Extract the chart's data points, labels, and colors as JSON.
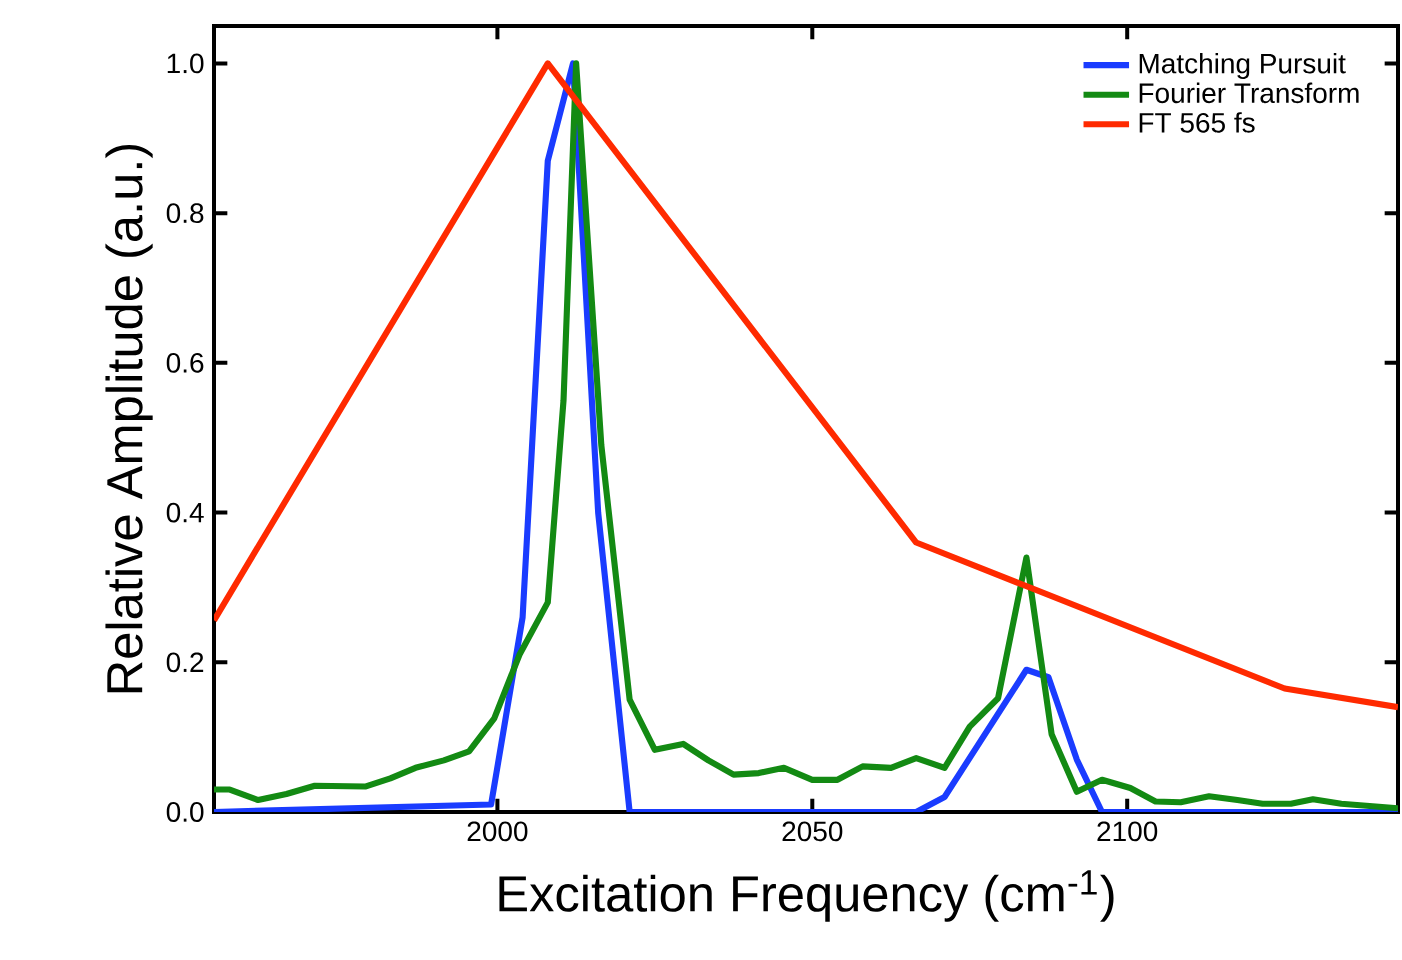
{
  "chart_data": {
    "type": "line",
    "xlabel": "Excitation Frequency (cm$^{-1}$)",
    "ylabel": "Relative Amplitude (a.u.)",
    "xlim": [
      1955,
      2143
    ],
    "ylim": [
      0,
      1.05
    ],
    "xticks": [
      2000,
      2050,
      2100
    ],
    "yticks": [
      {
        "value": 0,
        "label": "0.0"
      },
      {
        "value": 0.2,
        "label": "0.2"
      },
      {
        "value": 0.4,
        "label": "0.4"
      },
      {
        "value": 0.6,
        "label": "0.6"
      },
      {
        "value": 0.8,
        "label": "0.8"
      },
      {
        "value": 1.0,
        "label": "1.0"
      }
    ],
    "grid": false,
    "legend": "top right",
    "marker": "none",
    "line_style": "solid",
    "series": [
      {
        "name": "Matching Pursuit",
        "color": "#1a3cff",
        "x": [
          1955,
          1999,
          2004,
          2008,
          2012,
          2016,
          2021,
          2066.5,
          2071,
          2084,
          2087.5,
          2092,
          2096,
          2143
        ],
        "values": [
          0,
          0.01,
          0.26,
          0.87,
          1.0,
          0.4,
          0,
          0,
          0.02,
          0.19,
          0.18,
          0.07,
          0,
          0
        ]
      },
      {
        "name": "Fourier Transform",
        "color": "#138a13",
        "x": [
          1955,
          1957.5,
          1962,
          1966.5,
          1971,
          1979,
          1983,
          1987,
          1991.5,
          1995.5,
          1999.5,
          2003.5,
          2008,
          2010.5,
          2012.5,
          2016.5,
          2021,
          2025,
          2029.5,
          2033.5,
          2037.5,
          2041.5,
          2045.5,
          2050,
          2054,
          2058,
          2062.5,
          2066.5,
          2071,
          2075,
          2079.5,
          2084,
          2088,
          2092,
          2096,
          2100.5,
          2104.5,
          2108.5,
          2113,
          2117.5,
          2121.5,
          2126,
          2129.5,
          2134,
          2143
        ],
        "values": [
          0.03,
          0.03,
          0.016,
          0.024,
          0.035,
          0.034,
          0.045,
          0.059,
          0.069,
          0.081,
          0.125,
          0.21,
          0.28,
          0.55,
          1.0,
          0.49,
          0.15,
          0.083,
          0.091,
          0.069,
          0.05,
          0.052,
          0.059,
          0.043,
          0.043,
          0.061,
          0.059,
          0.072,
          0.059,
          0.114,
          0.152,
          0.34,
          0.104,
          0.027,
          0.043,
          0.032,
          0.014,
          0.013,
          0.021,
          0.016,
          0.011,
          0.011,
          0.017,
          0.011,
          0.005
        ]
      },
      {
        "name": "FT 565 fs",
        "color": "#ff2a00",
        "x": [
          1955,
          2008,
          2066.5,
          2125,
          2143
        ],
        "values": [
          0.256,
          1.0,
          0.36,
          0.165,
          0.14
        ]
      }
    ]
  }
}
